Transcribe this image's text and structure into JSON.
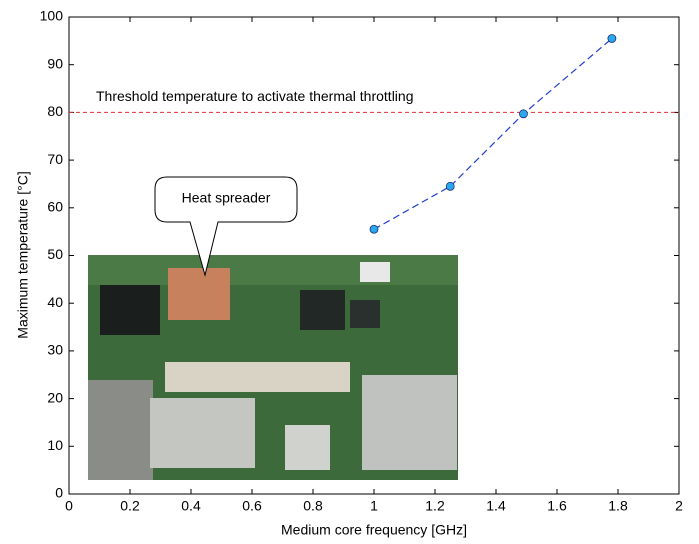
{
  "chart_data": {
    "type": "line",
    "xlabel": "Medium core frequency [GHz]",
    "ylabel": "Maximum temperature [°C]",
    "x": [
      1.0,
      1.25,
      1.49,
      1.78
    ],
    "series": [
      {
        "name": "Maximum temperature",
        "color": "#1f3fd0",
        "marker_color": "#29a8f0",
        "values": [
          55.5,
          64.5,
          79.7,
          95.5
        ]
      }
    ],
    "threshold": {
      "value": 80,
      "label": "Threshold temperature to activate thermal throttling",
      "color": "#e03030",
      "label_color": "#b01818"
    },
    "annotation": "Heat spreader",
    "xlim": [
      0,
      2
    ],
    "xticks": [
      0,
      0.2,
      0.4,
      0.6,
      0.8,
      1,
      1.2,
      1.4,
      1.6,
      1.8,
      2
    ],
    "ylim": [
      0,
      100
    ],
    "yticks": [
      0,
      10,
      20,
      30,
      40,
      50,
      60,
      70,
      80,
      90,
      100
    ],
    "grid": false
  }
}
